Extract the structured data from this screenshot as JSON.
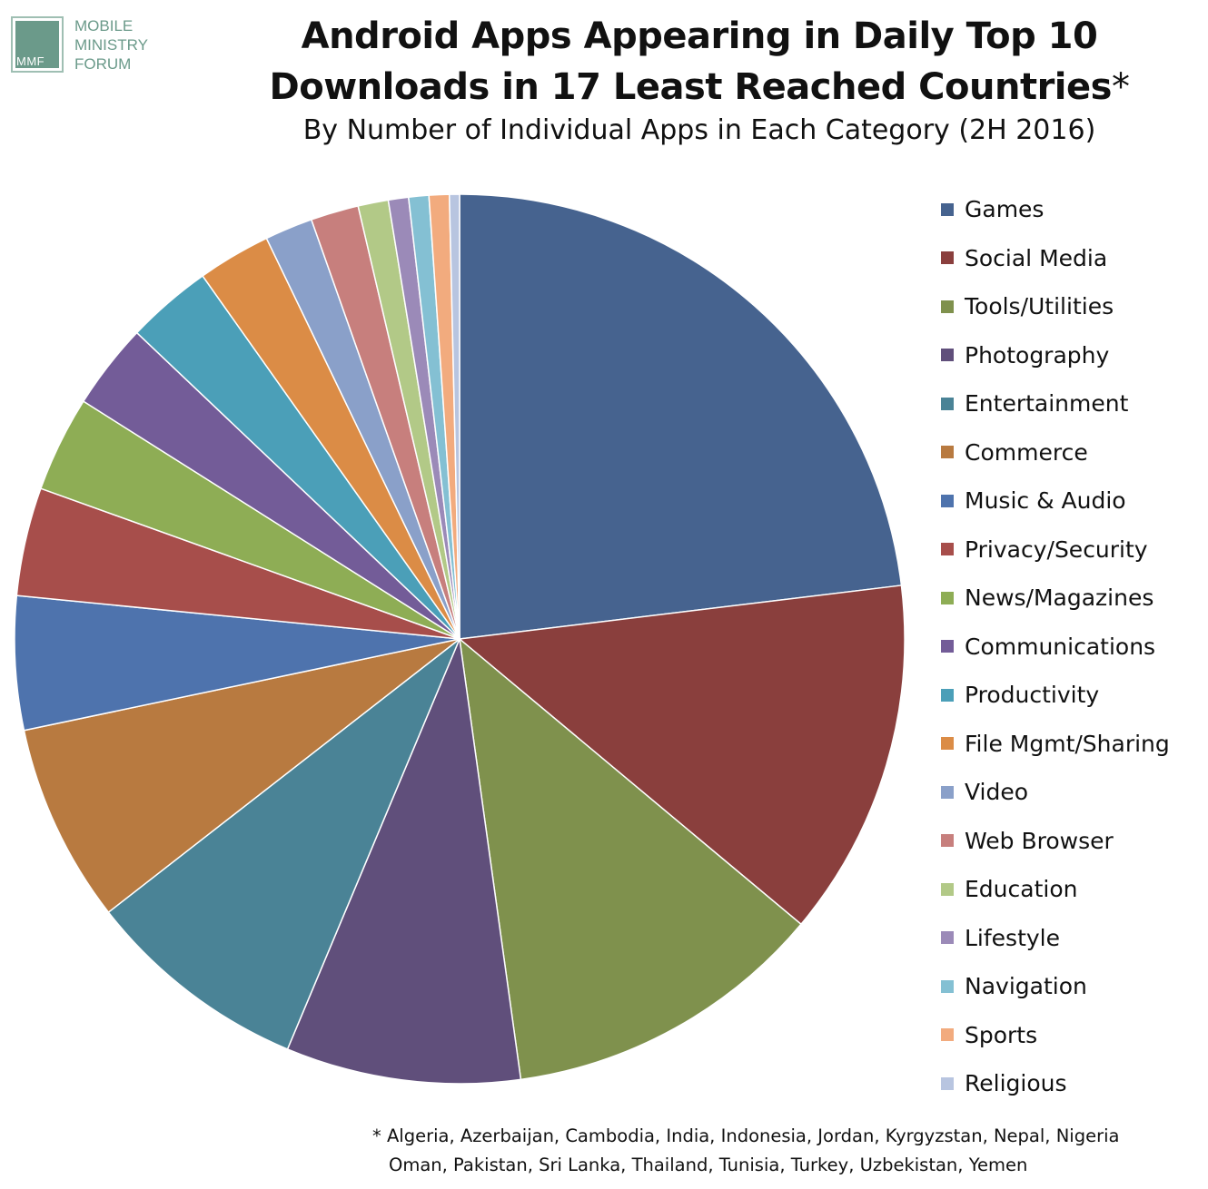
{
  "logo": {
    "mark": "MMF",
    "lines": [
      "MOBILE",
      "MINISTRY",
      "FORUM"
    ],
    "color": "#6b9a8a"
  },
  "title": {
    "line1": "Android Apps Appearing in Daily Top 10",
    "line2": "Downloads in 17 Least Reached Countries",
    "star": "*",
    "subtitle": "By Number of Individual Apps in Each Category (2H 2016)"
  },
  "chart_data": {
    "type": "pie",
    "title": "Android Apps Appearing in Daily Top 10 Downloads in 17 Least Reached Countries*",
    "subtitle": "By Number of Individual Apps in Each Category (2H 2016)",
    "start_angle_deg": 0,
    "direction": "clockwise",
    "legend_position": "right",
    "slices": [
      {
        "label": "Games",
        "value": 25.2,
        "color": "#46638f"
      },
      {
        "label": "Social Media",
        "value": 14.2,
        "color": "#8a3f3d"
      },
      {
        "label": "Tools/Utilities",
        "value": 12.8,
        "color": "#7f914d"
      },
      {
        "label": "Photography",
        "value": 9.3,
        "color": "#604f7b"
      },
      {
        "label": "Entertainment",
        "value": 8.9,
        "color": "#4a8396"
      },
      {
        "label": "Commerce",
        "value": 7.9,
        "color": "#b87a40"
      },
      {
        "label": "Music & Audio",
        "value": 5.3,
        "color": "#4e73ad"
      },
      {
        "label": "Privacy/Security",
        "value": 4.3,
        "color": "#a74e4b"
      },
      {
        "label": "News/Magazines",
        "value": 3.8,
        "color": "#8ead55"
      },
      {
        "label": "Communications",
        "value": 3.4,
        "color": "#735c98"
      },
      {
        "label": "Productivity",
        "value": 3.4,
        "color": "#4b9fb8"
      },
      {
        "label": "File Mgmt/Sharing",
        "value": 2.9,
        "color": "#db8c46"
      },
      {
        "label": "Video",
        "value": 1.9,
        "color": "#8aa0c9"
      },
      {
        "label": "Web Browser",
        "value": 1.9,
        "color": "#c77f7d"
      },
      {
        "label": "Education",
        "value": 1.2,
        "color": "#b2c987"
      },
      {
        "label": "Lifestyle",
        "value": 0.8,
        "color": "#9b8ab8"
      },
      {
        "label": "Navigation",
        "value": 0.8,
        "color": "#84c0d3"
      },
      {
        "label": "Sports",
        "value": 0.8,
        "color": "#f2ab7e"
      },
      {
        "label": "Religious",
        "value": 0.4,
        "color": "#b8c5e0"
      }
    ]
  },
  "footnote": {
    "line1": "* Algeria, Azerbaijan, Cambodia, India, Indonesia, Jordan, Kyrgyzstan, Nepal, Nigeria",
    "line2": "Oman, Pakistan, Sri Lanka, Thailand, Tunisia, Turkey, Uzbekistan, Yemen"
  }
}
